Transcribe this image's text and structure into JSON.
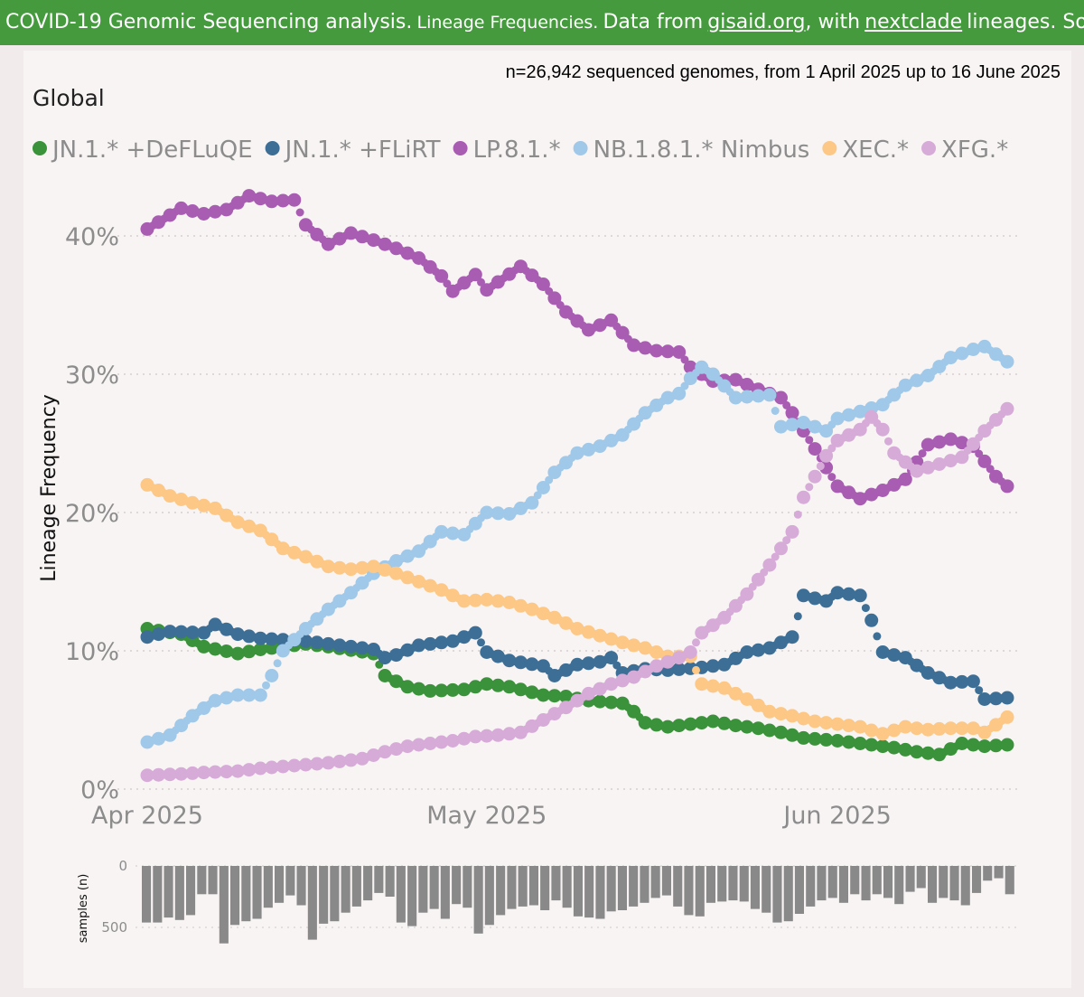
{
  "banner": {
    "part1": "COVID-19 Genomic Sequencing analysis.",
    "part2": "Lineage Frequencies.",
    "part3": "Data from",
    "link1": "gisaid.org",
    "part4": ", with",
    "link2": "nextclade",
    "part5": "lineages. Source"
  },
  "chart_data": {
    "type": "line",
    "title": "Global",
    "subtitle": "n=26,942 sequenced genomes, from 1 April 2025 up to 16 June 2025",
    "xlabel": "",
    "ylabel": "Lineage Frequency",
    "ylim": [
      0,
      45
    ],
    "yticks": [
      0,
      10,
      20,
      30,
      40
    ],
    "ytick_labels": [
      "0%",
      "10%",
      "20%",
      "30%",
      "40%"
    ],
    "xlim_days": [
      0,
      76
    ],
    "x_ticks": [
      {
        "day": 0,
        "label": "Apr 2025"
      },
      {
        "day": 30,
        "label": "May 2025"
      },
      {
        "day": 61,
        "label": "Jun 2025"
      }
    ],
    "x_unit": "days since 2025-04-01 (0 = 1 Apr 2025)",
    "legend_position": "top",
    "grid": true,
    "series": [
      {
        "name": "JN.1.* +DeFLuQE",
        "color": "#3a923a",
        "points": [
          [
            0,
            11.6
          ],
          [
            3,
            11.2
          ],
          [
            5,
            10.3
          ],
          [
            8,
            9.8
          ],
          [
            10,
            10.1
          ],
          [
            12,
            10.3
          ],
          [
            14,
            10.5
          ],
          [
            16,
            10.3
          ],
          [
            20,
            9.8
          ],
          [
            21,
            8.2
          ],
          [
            23,
            7.4
          ],
          [
            25,
            7.1
          ],
          [
            28,
            7.2
          ],
          [
            30,
            7.6
          ],
          [
            32,
            7.4
          ],
          [
            35,
            6.8
          ],
          [
            37,
            6.7
          ],
          [
            39,
            6.4
          ],
          [
            42,
            6.2
          ],
          [
            43,
            5.6
          ],
          [
            44,
            4.8
          ],
          [
            46,
            4.5
          ],
          [
            48,
            4.7
          ],
          [
            50,
            4.9
          ],
          [
            52,
            4.6
          ],
          [
            54,
            4.4
          ],
          [
            56,
            4.1
          ],
          [
            58,
            3.7
          ],
          [
            61,
            3.5
          ],
          [
            64,
            3.2
          ],
          [
            66,
            3.0
          ],
          [
            68,
            2.7
          ],
          [
            70,
            2.5
          ],
          [
            72,
            3.3
          ],
          [
            74,
            3.1
          ],
          [
            76,
            3.2
          ]
        ]
      },
      {
        "name": "JN.1.* +FLiRT",
        "color": "#3d6f96",
        "points": [
          [
            0,
            11.0
          ],
          [
            2,
            11.4
          ],
          [
            5,
            11.3
          ],
          [
            6,
            11.9
          ],
          [
            8,
            11.2
          ],
          [
            10,
            10.9
          ],
          [
            14,
            10.7
          ],
          [
            17,
            10.4
          ],
          [
            20,
            10.1
          ],
          [
            21,
            9.5
          ],
          [
            22,
            9.7
          ],
          [
            24,
            10.4
          ],
          [
            27,
            10.7
          ],
          [
            29,
            11.3
          ],
          [
            30,
            9.9
          ],
          [
            32,
            9.3
          ],
          [
            35,
            8.9
          ],
          [
            36,
            8.2
          ],
          [
            38,
            9.0
          ],
          [
            40,
            9.2
          ],
          [
            41,
            9.5
          ],
          [
            42,
            8.4
          ],
          [
            44,
            8.7
          ],
          [
            46,
            8.6
          ],
          [
            49,
            8.8
          ],
          [
            51,
            9.0
          ],
          [
            53,
            9.9
          ],
          [
            55,
            10.2
          ],
          [
            57,
            11.0
          ],
          [
            58,
            14.0
          ],
          [
            60,
            13.6
          ],
          [
            61,
            14.2
          ],
          [
            63,
            14.0
          ],
          [
            64,
            12.2
          ],
          [
            65,
            9.9
          ],
          [
            67,
            9.5
          ],
          [
            69,
            8.4
          ],
          [
            71,
            7.7
          ],
          [
            73,
            7.8
          ],
          [
            74,
            6.5
          ],
          [
            76,
            6.6
          ]
        ]
      },
      {
        "name": "LP.8.1.*",
        "color": "#a85cb2",
        "points": [
          [
            0,
            40.5
          ],
          [
            1,
            41.0
          ],
          [
            3,
            42.0
          ],
          [
            5,
            41.6
          ],
          [
            7,
            41.9
          ],
          [
            9,
            42.9
          ],
          [
            11,
            42.5
          ],
          [
            13,
            42.6
          ],
          [
            14,
            40.8
          ],
          [
            16,
            39.4
          ],
          [
            18,
            40.2
          ],
          [
            20,
            39.7
          ],
          [
            22,
            39.1
          ],
          [
            24,
            38.4
          ],
          [
            26,
            37.1
          ],
          [
            27,
            36.0
          ],
          [
            29,
            37.2
          ],
          [
            30,
            36.1
          ],
          [
            33,
            37.8
          ],
          [
            35,
            36.5
          ],
          [
            37,
            34.5
          ],
          [
            39,
            33.2
          ],
          [
            41,
            33.9
          ],
          [
            43,
            32.1
          ],
          [
            45,
            31.7
          ],
          [
            47,
            31.6
          ],
          [
            48,
            30.5
          ],
          [
            50,
            29.5
          ],
          [
            52,
            29.6
          ],
          [
            54,
            28.9
          ],
          [
            56,
            28.3
          ],
          [
            57,
            27.2
          ],
          [
            59,
            24.6
          ],
          [
            61,
            21.9
          ],
          [
            63,
            21.0
          ],
          [
            65,
            21.6
          ],
          [
            67,
            22.4
          ],
          [
            69,
            24.9
          ],
          [
            71,
            25.3
          ],
          [
            73,
            24.8
          ],
          [
            75,
            22.6
          ],
          [
            76,
            21.9
          ]
        ]
      },
      {
        "name": "NB.1.8.1.* Nimbus",
        "color": "#a0c8e8",
        "points": [
          [
            0,
            3.4
          ],
          [
            2,
            3.9
          ],
          [
            4,
            5.3
          ],
          [
            6,
            6.4
          ],
          [
            8,
            6.8
          ],
          [
            10,
            6.8
          ],
          [
            11,
            8.2
          ],
          [
            12,
            10.0
          ],
          [
            14,
            11.6
          ],
          [
            16,
            13.0
          ],
          [
            18,
            14.2
          ],
          [
            20,
            15.6
          ],
          [
            22,
            16.5
          ],
          [
            24,
            17.2
          ],
          [
            26,
            18.6
          ],
          [
            28,
            18.4
          ],
          [
            30,
            20.0
          ],
          [
            32,
            19.9
          ],
          [
            34,
            20.7
          ],
          [
            36,
            22.9
          ],
          [
            38,
            24.3
          ],
          [
            40,
            24.8
          ],
          [
            42,
            25.6
          ],
          [
            44,
            27.2
          ],
          [
            46,
            28.3
          ],
          [
            47,
            28.6
          ],
          [
            48,
            29.7
          ],
          [
            49,
            30.5
          ],
          [
            50,
            30.0
          ],
          [
            52,
            28.3
          ],
          [
            55,
            28.5
          ],
          [
            56,
            26.2
          ],
          [
            58,
            26.5
          ],
          [
            60,
            25.9
          ],
          [
            61,
            26.8
          ],
          [
            63,
            27.3
          ],
          [
            65,
            27.8
          ],
          [
            67,
            29.2
          ],
          [
            69,
            29.9
          ],
          [
            71,
            31.2
          ],
          [
            73,
            31.8
          ],
          [
            74,
            32.0
          ],
          [
            76,
            30.9
          ]
        ]
      },
      {
        "name": "XEC.*",
        "color": "#fdc885",
        "points": [
          [
            0,
            22.0
          ],
          [
            2,
            21.2
          ],
          [
            4,
            20.7
          ],
          [
            6,
            20.3
          ],
          [
            8,
            19.3
          ],
          [
            10,
            18.7
          ],
          [
            12,
            17.4
          ],
          [
            14,
            16.8
          ],
          [
            16,
            16.1
          ],
          [
            18,
            15.9
          ],
          [
            20,
            16.1
          ],
          [
            22,
            15.6
          ],
          [
            24,
            15.0
          ],
          [
            26,
            14.4
          ],
          [
            28,
            13.6
          ],
          [
            30,
            13.7
          ],
          [
            32,
            13.5
          ],
          [
            34,
            13.0
          ],
          [
            36,
            12.4
          ],
          [
            38,
            11.6
          ],
          [
            40,
            11.1
          ],
          [
            42,
            10.6
          ],
          [
            44,
            10.2
          ],
          [
            46,
            9.6
          ],
          [
            48,
            9.6
          ],
          [
            49,
            7.6
          ],
          [
            51,
            7.3
          ],
          [
            53,
            6.5
          ],
          [
            55,
            5.6
          ],
          [
            57,
            5.3
          ],
          [
            59,
            4.9
          ],
          [
            61,
            4.7
          ],
          [
            63,
            4.5
          ],
          [
            65,
            4.0
          ],
          [
            67,
            4.5
          ],
          [
            69,
            4.3
          ],
          [
            71,
            4.4
          ],
          [
            73,
            4.4
          ],
          [
            74,
            4.1
          ],
          [
            76,
            5.2
          ]
        ]
      },
      {
        "name": "XFG.*",
        "color": "#d7abd8",
        "points": [
          [
            0,
            1.0
          ],
          [
            3,
            1.1
          ],
          [
            5,
            1.2
          ],
          [
            8,
            1.3
          ],
          [
            10,
            1.5
          ],
          [
            13,
            1.7
          ],
          [
            16,
            1.9
          ],
          [
            19,
            2.2
          ],
          [
            21,
            2.7
          ],
          [
            23,
            3.1
          ],
          [
            25,
            3.3
          ],
          [
            27,
            3.5
          ],
          [
            29,
            3.8
          ],
          [
            31,
            3.9
          ],
          [
            33,
            4.1
          ],
          [
            35,
            5.0
          ],
          [
            37,
            5.9
          ],
          [
            39,
            6.9
          ],
          [
            41,
            7.6
          ],
          [
            43,
            8.1
          ],
          [
            45,
            8.9
          ],
          [
            47,
            9.5
          ],
          [
            48,
            9.9
          ],
          [
            49,
            11.3
          ],
          [
            51,
            12.4
          ],
          [
            53,
            14.1
          ],
          [
            55,
            16.2
          ],
          [
            57,
            18.6
          ],
          [
            58,
            21.1
          ],
          [
            59,
            22.6
          ],
          [
            60,
            24.1
          ],
          [
            61,
            25.2
          ],
          [
            63,
            26.0
          ],
          [
            64,
            26.9
          ],
          [
            65,
            26.0
          ],
          [
            66,
            24.3
          ],
          [
            68,
            23.0
          ],
          [
            70,
            23.5
          ],
          [
            72,
            24.0
          ],
          [
            74,
            25.9
          ],
          [
            76,
            27.5
          ]
        ]
      }
    ],
    "bar_chart": {
      "ylabel": "samples (n)",
      "yticks": [
        0,
        500
      ],
      "values": [
        460,
        460,
        420,
        440,
        400,
        230,
        230,
        630,
        480,
        450,
        430,
        340,
        300,
        240,
        320,
        600,
        470,
        450,
        380,
        330,
        280,
        220,
        250,
        460,
        490,
        380,
        350,
        430,
        310,
        340,
        550,
        480,
        400,
        350,
        330,
        320,
        360,
        280,
        340,
        410,
        420,
        430,
        370,
        360,
        330,
        300,
        260,
        240,
        330,
        400,
        410,
        300,
        290,
        280,
        290,
        350,
        380,
        460,
        450,
        390,
        330,
        280,
        260,
        300,
        230,
        280,
        230,
        260,
        310,
        210,
        180,
        300,
        260,
        280,
        320,
        220,
        120,
        100,
        230
      ]
    }
  }
}
